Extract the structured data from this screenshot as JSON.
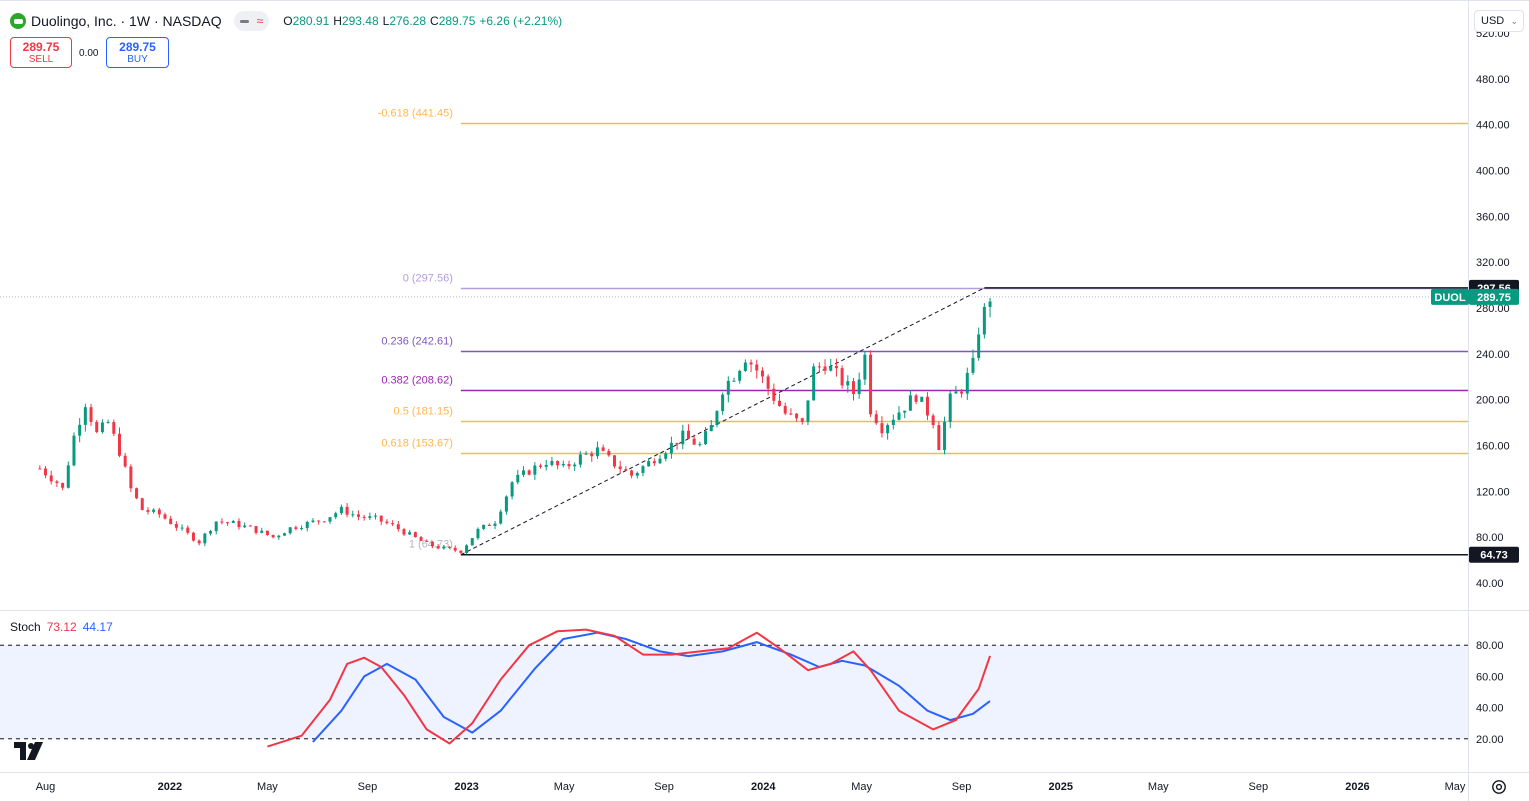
{
  "symbol": {
    "title": "Duolingo, Inc. · 1W · NASDAQ",
    "ticker": "DUOL",
    "ohlc": {
      "o_label": "O",
      "o": "280.91",
      "h_label": "H",
      "h": "293.48",
      "l_label": "L",
      "l": "276.28",
      "c_label": "C",
      "c": "289.75",
      "change": "+6.26 (+2.21%)"
    }
  },
  "trade": {
    "sell_price": "289.75",
    "sell_label": "SELL",
    "spread": "0.00",
    "buy_price": "289.75",
    "buy_label": "BUY"
  },
  "currency": "USD",
  "stoch": {
    "name": "Stoch",
    "k": "73.12",
    "d": "44.17"
  },
  "colors": {
    "up": "#089981",
    "down": "#f23645",
    "k_line": "#f23645",
    "d_line": "#2962ff",
    "fib_purple": "#9c27b0",
    "fib_orange": "#ffb74d"
  },
  "icons": {
    "logo": "duolingo-logo-icon",
    "settings": "gear-icon",
    "brand": "tradingview-logo-icon"
  },
  "chart_data": {
    "type": "candlestick",
    "interval": "1W",
    "price_axis": {
      "ylim": [
        20,
        540
      ],
      "ticks": [
        "40.00",
        "80.00",
        "120.00",
        "160.00",
        "200.00",
        "240.00",
        "280.00",
        "320.00",
        "360.00",
        "400.00",
        "440.00",
        "480.00",
        "520.00"
      ],
      "last_price": "289.75",
      "high_marker": "297.56",
      "low_marker": "64.73"
    },
    "time_axis": {
      "xlim": [
        "2021-06-06",
        "2026-05-17"
      ],
      "labels": [
        {
          "text": "Aug",
          "date": "2021-08-01"
        },
        {
          "text": "2022",
          "date": "2022-01-01"
        },
        {
          "text": "May",
          "date": "2022-05-01"
        },
        {
          "text": "Sep",
          "date": "2022-09-01"
        },
        {
          "text": "2023",
          "date": "2023-01-01"
        },
        {
          "text": "May",
          "date": "2023-05-01"
        },
        {
          "text": "Sep",
          "date": "2023-09-01"
        },
        {
          "text": "2024",
          "date": "2024-01-01"
        },
        {
          "text": "May",
          "date": "2024-05-01"
        },
        {
          "text": "Sep",
          "date": "2024-09-01"
        },
        {
          "text": "2025",
          "date": "2025-01-01"
        },
        {
          "text": "May",
          "date": "2025-05-01"
        },
        {
          "text": "Sep",
          "date": "2025-09-01"
        },
        {
          "text": "2026",
          "date": "2026-01-01"
        },
        {
          "text": "May",
          "date": "2026-05-01"
        }
      ]
    },
    "series_points": [
      [
        "2021-07-25",
        140
      ],
      [
        "2021-08-15",
        128
      ],
      [
        "2021-08-22",
        122
      ],
      [
        "2021-09-05",
        168
      ],
      [
        "2021-09-19",
        198
      ],
      [
        "2021-10-03",
        170
      ],
      [
        "2021-10-17",
        180
      ],
      [
        "2021-10-31",
        155
      ],
      [
        "2021-11-14",
        122
      ],
      [
        "2021-11-28",
        104
      ],
      [
        "2021-12-19",
        100
      ],
      [
        "2022-01-16",
        86
      ],
      [
        "2022-02-06",
        76
      ],
      [
        "2022-02-27",
        94
      ],
      [
        "2022-03-20",
        92
      ],
      [
        "2022-04-10",
        88
      ],
      [
        "2022-05-08",
        80
      ],
      [
        "2022-05-29",
        88
      ],
      [
        "2022-06-19",
        92
      ],
      [
        "2022-07-10",
        96
      ],
      [
        "2022-07-31",
        104
      ],
      [
        "2022-08-21",
        98
      ],
      [
        "2022-09-11",
        96
      ],
      [
        "2022-10-02",
        90
      ],
      [
        "2022-10-23",
        82
      ],
      [
        "2022-11-13",
        74
      ],
      [
        "2022-12-04",
        70
      ],
      [
        "2022-12-25",
        68
      ],
      [
        "2023-01-15",
        86
      ],
      [
        "2023-02-05",
        94
      ],
      [
        "2023-02-26",
        128
      ],
      [
        "2023-03-19",
        138
      ],
      [
        "2023-04-09",
        146
      ],
      [
        "2023-04-30",
        140
      ],
      [
        "2023-05-21",
        150
      ],
      [
        "2023-06-11",
        156
      ],
      [
        "2023-07-02",
        144
      ],
      [
        "2023-07-23",
        134
      ],
      [
        "2023-08-13",
        145
      ],
      [
        "2023-09-03",
        157
      ],
      [
        "2023-09-24",
        168
      ],
      [
        "2023-10-15",
        160
      ],
      [
        "2023-10-29",
        176
      ],
      [
        "2023-11-12",
        210
      ],
      [
        "2023-11-26",
        222
      ],
      [
        "2023-12-10",
        238
      ],
      [
        "2023-12-24",
        226
      ],
      [
        "2024-01-14",
        202
      ],
      [
        "2024-01-28",
        188
      ],
      [
        "2024-02-18",
        178
      ],
      [
        "2024-03-03",
        226
      ],
      [
        "2024-03-17",
        232
      ],
      [
        "2024-04-07",
        216
      ],
      [
        "2024-04-21",
        206
      ],
      [
        "2024-05-05",
        238
      ],
      [
        "2024-05-12",
        192
      ],
      [
        "2024-05-26",
        176
      ],
      [
        "2024-06-16",
        190
      ],
      [
        "2024-07-07",
        204
      ],
      [
        "2024-07-28",
        182
      ],
      [
        "2024-08-04",
        160
      ],
      [
        "2024-08-18",
        200
      ],
      [
        "2024-09-01",
        210
      ],
      [
        "2024-09-15",
        230
      ],
      [
        "2024-09-22",
        262
      ],
      [
        "2024-09-29",
        276
      ],
      [
        "2024-10-06",
        290
      ]
    ],
    "trend_line": {
      "from": [
        "2022-12-25",
        64.73
      ],
      "to": [
        "2024-09-29",
        297.56
      ]
    },
    "fib_levels": [
      {
        "ratio": "0",
        "value": "297.56",
        "label": "0 (297.56)",
        "color": "#b39ddb"
      },
      {
        "ratio": "0.236",
        "value": "242.61",
        "label": "0.236 (242.61)",
        "color": "#7e57c2"
      },
      {
        "ratio": "0.382",
        "value": "208.62",
        "label": "0.382 (208.62)",
        "color": "#9c27b0"
      },
      {
        "ratio": "0.5",
        "value": "181.15",
        "label": "0.5 (181.15)",
        "color": "#ffb74d"
      },
      {
        "ratio": "0.618",
        "value": "153.67",
        "label": "0.618 (153.67)",
        "color": "#ffb74d"
      },
      {
        "ratio": "-0.618",
        "value": "441.45",
        "label": "-0.618 (441.45)",
        "color": "#ffb74d"
      }
    ],
    "fib_base": {
      "ratio": "1",
      "value": "64.73",
      "label": "1 (64.73)"
    },
    "stochastic": {
      "ylim": [
        0,
        100
      ],
      "ticks": [
        "20.00",
        "40.00",
        "60.00",
        "80.00"
      ],
      "band": [
        20,
        80
      ],
      "k": [
        [
          "2022-05-01",
          15
        ],
        [
          "2022-06-12",
          22
        ],
        [
          "2022-07-17",
          45
        ],
        [
          "2022-08-07",
          68
        ],
        [
          "2022-08-28",
          72
        ],
        [
          "2022-09-18",
          66
        ],
        [
          "2022-10-16",
          48
        ],
        [
          "2022-11-13",
          26
        ],
        [
          "2022-12-11",
          17
        ],
        [
          "2023-01-08",
          30
        ],
        [
          "2023-02-12",
          58
        ],
        [
          "2023-03-19",
          80
        ],
        [
          "2023-04-23",
          89
        ],
        [
          "2023-05-28",
          90
        ],
        [
          "2023-07-02",
          86
        ],
        [
          "2023-08-06",
          74
        ],
        [
          "2023-09-10",
          74
        ],
        [
          "2023-10-15",
          76
        ],
        [
          "2023-11-19",
          78
        ],
        [
          "2023-12-24",
          88
        ],
        [
          "2024-01-21",
          78
        ],
        [
          "2024-02-25",
          64
        ],
        [
          "2024-03-24",
          68
        ],
        [
          "2024-04-21",
          76
        ],
        [
          "2024-05-12",
          64
        ],
        [
          "2024-06-16",
          38
        ],
        [
          "2024-07-28",
          26
        ],
        [
          "2024-08-25",
          32
        ],
        [
          "2024-09-22",
          52
        ],
        [
          "2024-10-06",
          73.12
        ]
      ],
      "d": [
        [
          "2022-06-26",
          18
        ],
        [
          "2022-07-31",
          38
        ],
        [
          "2022-08-28",
          60
        ],
        [
          "2022-09-25",
          68
        ],
        [
          "2022-10-30",
          58
        ],
        [
          "2022-12-04",
          34
        ],
        [
          "2023-01-08",
          24
        ],
        [
          "2023-02-12",
          38
        ],
        [
          "2023-03-26",
          65
        ],
        [
          "2023-04-30",
          84
        ],
        [
          "2023-06-11",
          88
        ],
        [
          "2023-07-16",
          84
        ],
        [
          "2023-08-27",
          76
        ],
        [
          "2023-10-01",
          73
        ],
        [
          "2023-11-12",
          76
        ],
        [
          "2023-12-24",
          82
        ],
        [
          "2024-02-04",
          74
        ],
        [
          "2024-03-10",
          66
        ],
        [
          "2024-04-07",
          70
        ],
        [
          "2024-05-05",
          67
        ],
        [
          "2024-06-16",
          54
        ],
        [
          "2024-07-21",
          38
        ],
        [
          "2024-08-18",
          32
        ],
        [
          "2024-09-15",
          36
        ],
        [
          "2024-10-06",
          44.17
        ]
      ]
    }
  }
}
